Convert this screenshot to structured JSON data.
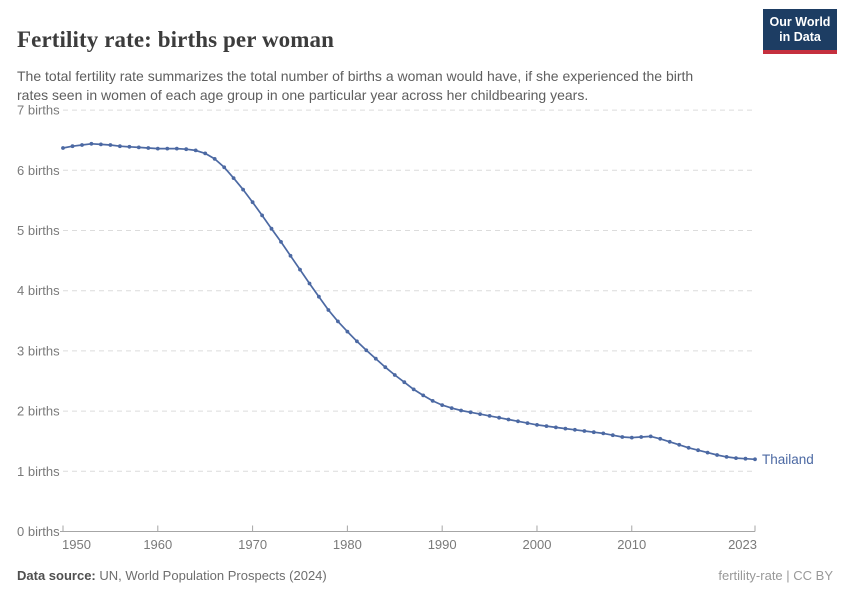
{
  "header": {
    "title": "Fertility rate: births per woman",
    "subtitle": "The total fertility rate summarizes the total number of births a woman would have, if she experienced the birth\nrates seen in women of each age group in one particular year across her childbearing years.",
    "logo": {
      "line1": "Our World",
      "line2": "in Data"
    }
  },
  "footer": {
    "source_label": "Data source:",
    "source_value": " UN, World Population Prospects (2024)",
    "license": "fertility-rate | CC BY"
  },
  "colors": {
    "line": "#4c69a3",
    "series_label": "#4c69a3",
    "logo_bg": "#1d3d63",
    "logo_accent": "#c5303e",
    "grid": "#dcdcdc",
    "axis": "#a6a6a6",
    "tick_text": "#7a7a7a",
    "title_text": "#3c3c3c",
    "subtitle_text": "#5e5e5e"
  },
  "chart_data": {
    "type": "line",
    "title": "Fertility rate: births per woman",
    "xlabel": "",
    "ylabel": "births",
    "xlim": [
      1950,
      2023
    ],
    "ylim": [
      0,
      7
    ],
    "yticks": [
      0,
      1,
      2,
      3,
      4,
      5,
      6,
      7
    ],
    "ytick_suffix": " births",
    "xticks": [
      1950,
      1960,
      1970,
      1980,
      1990,
      2000,
      2010,
      2023
    ],
    "grid": "horizontal-dashed",
    "legend_position": "line-end-label",
    "series": [
      {
        "name": "Thailand",
        "x": [
          1950,
          1951,
          1952,
          1953,
          1954,
          1955,
          1956,
          1957,
          1958,
          1959,
          1960,
          1961,
          1962,
          1963,
          1964,
          1965,
          1966,
          1967,
          1968,
          1969,
          1970,
          1971,
          1972,
          1973,
          1974,
          1975,
          1976,
          1977,
          1978,
          1979,
          1980,
          1981,
          1982,
          1983,
          1984,
          1985,
          1986,
          1987,
          1988,
          1989,
          1990,
          1991,
          1992,
          1993,
          1994,
          1995,
          1996,
          1997,
          1998,
          1999,
          2000,
          2001,
          2002,
          2003,
          2004,
          2005,
          2006,
          2007,
          2008,
          2009,
          2010,
          2011,
          2012,
          2013,
          2014,
          2015,
          2016,
          2017,
          2018,
          2019,
          2020,
          2021,
          2022,
          2023
        ],
        "values": [
          6.37,
          6.4,
          6.42,
          6.44,
          6.43,
          6.42,
          6.4,
          6.39,
          6.38,
          6.37,
          6.36,
          6.36,
          6.36,
          6.35,
          6.33,
          6.28,
          6.19,
          6.05,
          5.87,
          5.68,
          5.47,
          5.25,
          5.03,
          4.81,
          4.58,
          4.35,
          4.12,
          3.9,
          3.68,
          3.49,
          3.32,
          3.16,
          3.01,
          2.87,
          2.73,
          2.6,
          2.48,
          2.36,
          2.26,
          2.17,
          2.1,
          2.05,
          2.01,
          1.98,
          1.95,
          1.92,
          1.89,
          1.86,
          1.83,
          1.8,
          1.77,
          1.75,
          1.73,
          1.71,
          1.69,
          1.67,
          1.65,
          1.63,
          1.6,
          1.57,
          1.56,
          1.57,
          1.58,
          1.54,
          1.49,
          1.44,
          1.39,
          1.35,
          1.31,
          1.27,
          1.24,
          1.22,
          1.21,
          1.2
        ]
      }
    ]
  }
}
